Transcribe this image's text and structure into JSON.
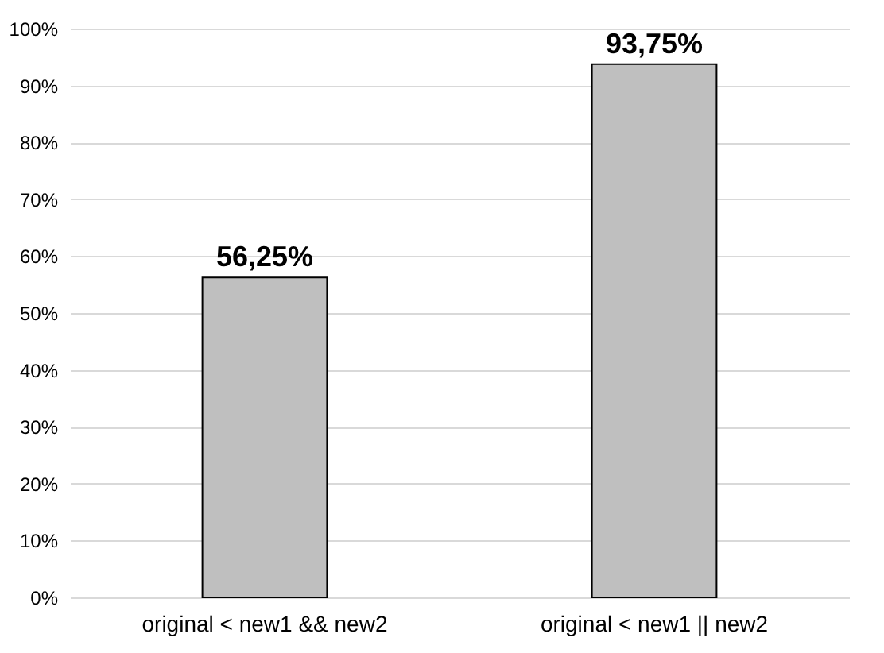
{
  "chart_data": {
    "type": "bar",
    "categories": [
      "original < new1 && new2",
      "original < new1 || new2"
    ],
    "values": [
      56.25,
      93.75
    ],
    "value_labels": [
      "56,25%",
      "93,75%"
    ],
    "color": "#bfbfbf",
    "ylim": [
      0,
      100
    ],
    "yticks": [
      {
        "value": 0,
        "label": "0%"
      },
      {
        "value": 10,
        "label": "10%"
      },
      {
        "value": 20,
        "label": "20%"
      },
      {
        "value": 30,
        "label": "30%"
      },
      {
        "value": 40,
        "label": "40%"
      },
      {
        "value": 50,
        "label": "50%"
      },
      {
        "value": 60,
        "label": "60%"
      },
      {
        "value": 70,
        "label": "70%"
      },
      {
        "value": 80,
        "label": "80%"
      },
      {
        "value": 90,
        "label": "90%"
      },
      {
        "value": 100,
        "label": "100%"
      }
    ],
    "grid": "y"
  }
}
